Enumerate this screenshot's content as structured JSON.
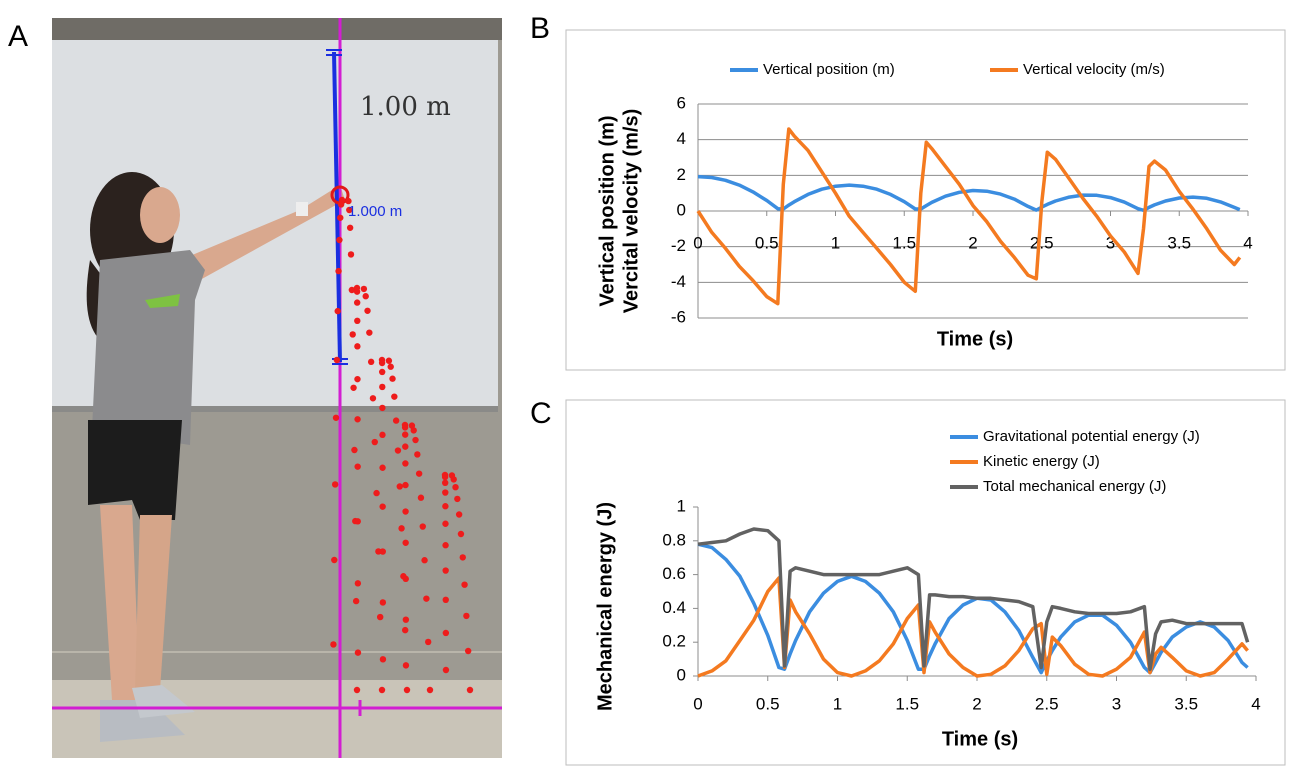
{
  "panels": [
    "A",
    "B",
    "C"
  ],
  "photo": {
    "labels": [
      "1.00 m",
      "1.000 m"
    ]
  },
  "chart_data": [
    {
      "type": "line",
      "xlabel": "Time (s)",
      "ylabel": [
        "Vertical position (m)",
        "Vercital velocity (m/s)"
      ],
      "x": [
        0,
        0.1,
        0.2,
        0.3,
        0.4,
        0.5,
        0.58,
        0.62,
        0.66,
        0.7,
        0.8,
        0.9,
        1.0,
        1.1,
        1.2,
        1.3,
        1.4,
        1.5,
        1.58,
        1.62,
        1.66,
        1.7,
        1.8,
        1.9,
        2.0,
        2.1,
        2.2,
        2.3,
        2.4,
        2.46,
        2.5,
        2.54,
        2.6,
        2.7,
        2.8,
        2.9,
        3.0,
        3.1,
        3.2,
        3.24,
        3.28,
        3.32,
        3.4,
        3.5,
        3.6,
        3.7,
        3.8,
        3.9,
        3.94
      ],
      "series": [
        {
          "name": "Vertical position (m)",
          "color": "#3b8de0",
          "values": [
            1.93,
            1.88,
            1.72,
            1.45,
            1.07,
            0.59,
            0.13,
            0.11,
            0.33,
            0.52,
            0.93,
            1.22,
            1.39,
            1.45,
            1.39,
            1.22,
            0.93,
            0.52,
            0.11,
            0.11,
            0.3,
            0.48,
            0.83,
            1.05,
            1.15,
            1.11,
            0.95,
            0.67,
            0.26,
            0.05,
            0.22,
            0.37,
            0.56,
            0.78,
            0.89,
            0.88,
            0.75,
            0.5,
            0.13,
            0.04,
            0.2,
            0.34,
            0.56,
            0.73,
            0.78,
            0.71,
            0.51,
            0.2,
            0.08
          ]
        },
        {
          "name": "Vertical velocity (m/s)",
          "color": "#f47a20",
          "values": [
            0,
            -1.2,
            -2.1,
            -3.1,
            -3.9,
            -4.8,
            -5.2,
            1.5,
            4.6,
            4.2,
            3.4,
            2.2,
            1.0,
            -0.3,
            -1.2,
            -2.1,
            -3.0,
            -4.0,
            -4.5,
            1.0,
            3.85,
            3.5,
            2.5,
            1.5,
            0.3,
            -0.6,
            -1.7,
            -2.6,
            -3.6,
            -3.8,
            0.5,
            3.3,
            2.9,
            1.8,
            0.7,
            -0.3,
            -1.4,
            -2.3,
            -3.5,
            -1.0,
            2.5,
            2.8,
            2.3,
            1.1,
            0.1,
            -1.0,
            -2.2,
            -3.0,
            -2.6
          ]
        }
      ],
      "xlim": [
        0,
        4
      ],
      "xticks": [
        0,
        0.5,
        1,
        1.5,
        2,
        2.5,
        3,
        3.5,
        4
      ],
      "ylim": [
        -6,
        6
      ],
      "yticks": [
        -6,
        -4,
        -2,
        0,
        2,
        4,
        6
      ],
      "grid": true,
      "legend": "top"
    },
    {
      "type": "line",
      "xlabel": "Time (s)",
      "ylabel": [
        "Mechanical energy (J)"
      ],
      "x": [
        0,
        0.1,
        0.2,
        0.3,
        0.4,
        0.5,
        0.58,
        0.62,
        0.66,
        0.7,
        0.8,
        0.9,
        1.0,
        1.1,
        1.2,
        1.3,
        1.4,
        1.5,
        1.58,
        1.62,
        1.66,
        1.7,
        1.8,
        1.9,
        2.0,
        2.1,
        2.2,
        2.3,
        2.4,
        2.46,
        2.5,
        2.54,
        2.6,
        2.7,
        2.8,
        2.9,
        3.0,
        3.1,
        3.2,
        3.24,
        3.28,
        3.32,
        3.4,
        3.5,
        3.6,
        3.7,
        3.8,
        3.9,
        3.94
      ],
      "series": [
        {
          "name": "Gravitational potential energy (J)",
          "color": "#3b8de0",
          "values": [
            0.78,
            0.76,
            0.69,
            0.59,
            0.43,
            0.24,
            0.05,
            0.04,
            0.13,
            0.21,
            0.38,
            0.49,
            0.56,
            0.59,
            0.56,
            0.49,
            0.38,
            0.21,
            0.04,
            0.04,
            0.12,
            0.19,
            0.34,
            0.42,
            0.46,
            0.45,
            0.38,
            0.27,
            0.11,
            0.02,
            0.09,
            0.15,
            0.23,
            0.32,
            0.36,
            0.36,
            0.3,
            0.2,
            0.05,
            0.02,
            0.08,
            0.14,
            0.23,
            0.29,
            0.32,
            0.29,
            0.21,
            0.08,
            0.05
          ]
        },
        {
          "name": "Kinetic energy (J)",
          "color": "#f47a20",
          "values": [
            0,
            0.03,
            0.09,
            0.21,
            0.33,
            0.5,
            0.58,
            0.05,
            0.45,
            0.38,
            0.25,
            0.1,
            0.02,
            0,
            0.03,
            0.09,
            0.19,
            0.34,
            0.42,
            0.02,
            0.32,
            0.26,
            0.13,
            0.05,
            0,
            0.01,
            0.06,
            0.15,
            0.28,
            0.31,
            0.01,
            0.23,
            0.18,
            0.07,
            0.01,
            0,
            0.04,
            0.11,
            0.26,
            0.02,
            0.13,
            0.17,
            0.11,
            0.03,
            0,
            0.02,
            0.1,
            0.19,
            0.15
          ]
        },
        {
          "name": "Total mechanical energy (J)",
          "color": "#626262",
          "values": [
            0.78,
            0.79,
            0.8,
            0.84,
            0.87,
            0.86,
            0.8,
            0.06,
            0.62,
            0.64,
            0.62,
            0.6,
            0.6,
            0.6,
            0.6,
            0.6,
            0.62,
            0.64,
            0.6,
            0.06,
            0.48,
            0.48,
            0.47,
            0.47,
            0.46,
            0.46,
            0.45,
            0.44,
            0.41,
            0.05,
            0.32,
            0.41,
            0.4,
            0.38,
            0.37,
            0.37,
            0.37,
            0.38,
            0.41,
            0.04,
            0.25,
            0.32,
            0.33,
            0.31,
            0.31,
            0.31,
            0.31,
            0.31,
            0.2
          ]
        }
      ],
      "xlim": [
        0,
        4
      ],
      "xticks": [
        0,
        0.5,
        1,
        1.5,
        2,
        2.5,
        3,
        3.5,
        4
      ],
      "ylim": [
        0,
        1
      ],
      "yticks": [
        0,
        0.2,
        0.4,
        0.6,
        0.8,
        1
      ],
      "grid": false,
      "legend": "upper right"
    }
  ]
}
